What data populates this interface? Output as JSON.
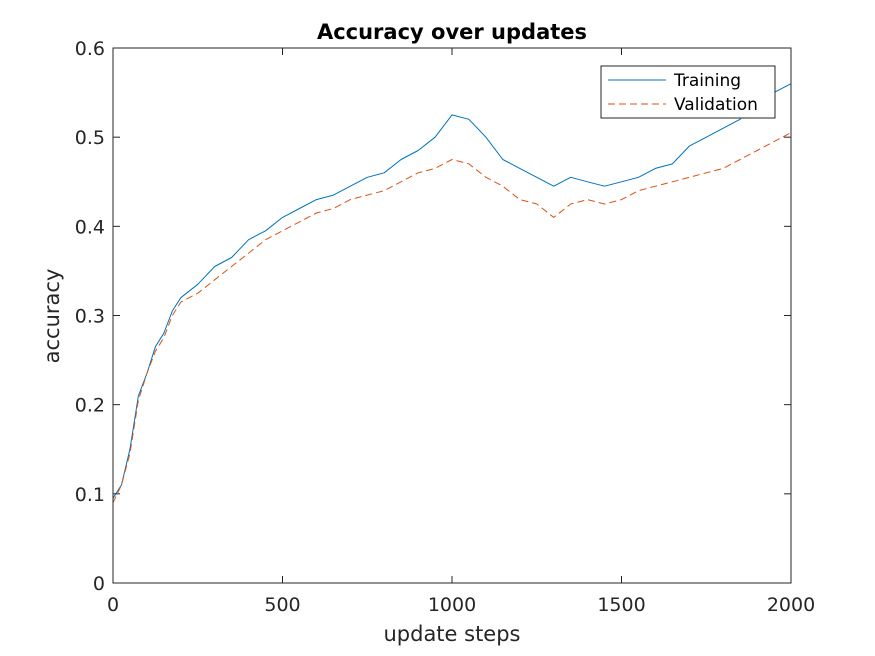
{
  "chart_data": {
    "type": "line",
    "title": "Accuracy over updates",
    "xlabel": "update steps",
    "ylabel": "accuracy",
    "xlim": [
      0,
      2000
    ],
    "ylim": [
      0,
      0.6
    ],
    "xticks": [
      "0",
      "500",
      "1000",
      "1500",
      "2000"
    ],
    "yticks": [
      "0",
      "0.1",
      "0.2",
      "0.3",
      "0.4",
      "0.5",
      "0.6"
    ],
    "grid": false,
    "legend": "top-right",
    "series": [
      {
        "name": "Training",
        "color": "#0072BD",
        "dash": "solid",
        "x": [
          0,
          25,
          50,
          75,
          100,
          125,
          150,
          175,
          200,
          250,
          300,
          350,
          400,
          450,
          500,
          550,
          600,
          650,
          700,
          750,
          800,
          850,
          900,
          950,
          1000,
          1050,
          1100,
          1150,
          1200,
          1250,
          1300,
          1350,
          1400,
          1450,
          1500,
          1550,
          1600,
          1650,
          1700,
          1750,
          1800,
          1850,
          1900,
          1950,
          2000
        ],
        "y": [
          0.095,
          0.11,
          0.15,
          0.21,
          0.235,
          0.265,
          0.28,
          0.305,
          0.32,
          0.335,
          0.355,
          0.365,
          0.385,
          0.395,
          0.41,
          0.42,
          0.43,
          0.435,
          0.445,
          0.455,
          0.46,
          0.475,
          0.485,
          0.5,
          0.525,
          0.52,
          0.5,
          0.475,
          0.465,
          0.455,
          0.445,
          0.455,
          0.45,
          0.445,
          0.45,
          0.455,
          0.465,
          0.47,
          0.49,
          0.5,
          0.51,
          0.52,
          0.545,
          0.55,
          0.56
        ]
      },
      {
        "name": "Validation",
        "color": "#D95319",
        "dash": "dashed",
        "x": [
          0,
          25,
          50,
          75,
          100,
          125,
          150,
          175,
          200,
          250,
          300,
          350,
          400,
          450,
          500,
          550,
          600,
          650,
          700,
          750,
          800,
          850,
          900,
          950,
          1000,
          1050,
          1100,
          1150,
          1200,
          1250,
          1300,
          1350,
          1400,
          1450,
          1500,
          1550,
          1600,
          1650,
          1700,
          1750,
          1800,
          1850,
          1900,
          1950,
          2000
        ],
        "y": [
          0.09,
          0.11,
          0.145,
          0.205,
          0.235,
          0.26,
          0.275,
          0.3,
          0.315,
          0.325,
          0.34,
          0.355,
          0.37,
          0.385,
          0.395,
          0.405,
          0.415,
          0.42,
          0.43,
          0.435,
          0.44,
          0.45,
          0.46,
          0.465,
          0.475,
          0.47,
          0.455,
          0.445,
          0.43,
          0.425,
          0.41,
          0.425,
          0.43,
          0.425,
          0.43,
          0.44,
          0.445,
          0.45,
          0.455,
          0.46,
          0.465,
          0.475,
          0.485,
          0.495,
          0.505
        ]
      }
    ]
  }
}
